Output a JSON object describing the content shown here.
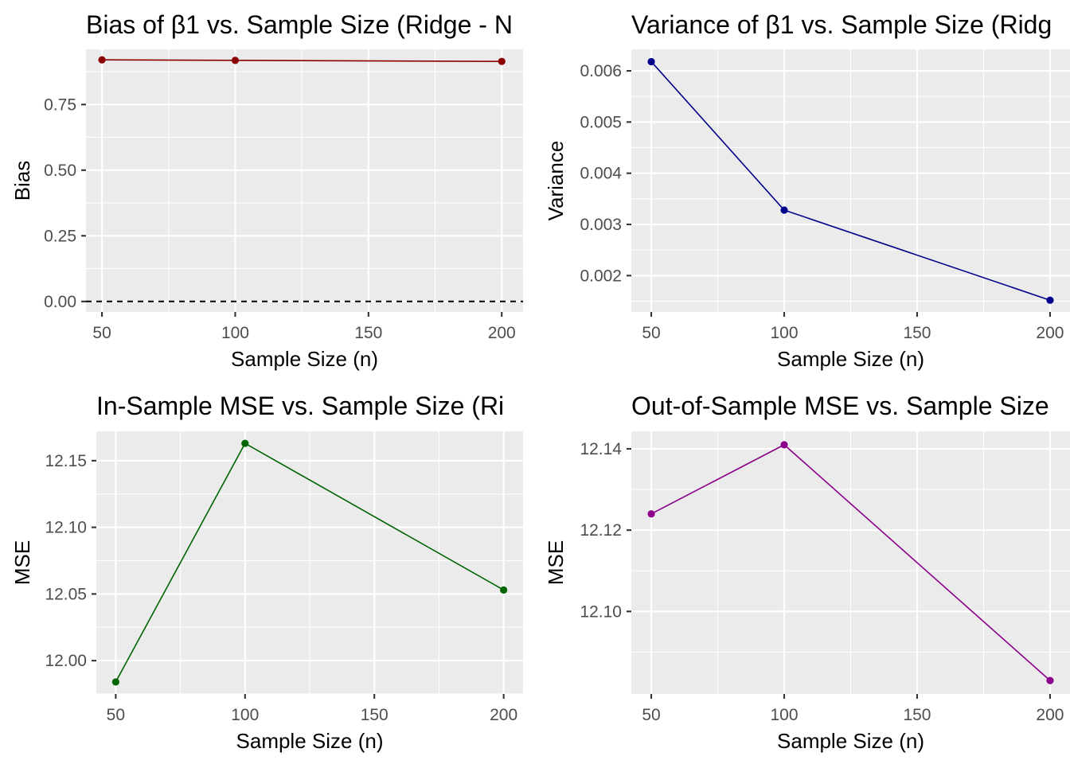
{
  "chart_data": [
    {
      "type": "line",
      "title": "Bias of β1 vs. Sample Size (Ridge - N",
      "xlabel": "Sample Size (n)",
      "ylabel": "Bias",
      "x": [
        50,
        100,
        200
      ],
      "series": [
        {
          "values": [
            0.92,
            0.918,
            0.914
          ],
          "color": "#8b0000"
        }
      ],
      "reference_line": {
        "y": 0,
        "style": "dashed",
        "color": "#000000"
      },
      "xlim": [
        44,
        208
      ],
      "ylim": [
        -0.04,
        0.96
      ],
      "xticks": [
        50,
        100,
        150,
        200
      ],
      "xtick_labels": [
        "50",
        "100",
        "150",
        "200"
      ],
      "yticks": [
        0,
        0.25,
        0.5,
        0.75
      ],
      "ytick_labels": [
        "0.00",
        "0.25",
        "0.50",
        "0.75"
      ],
      "grid": true
    },
    {
      "type": "line",
      "title": "Variance of β1 vs. Sample Size (Ridg",
      "xlabel": "Sample Size (n)",
      "ylabel": "Variance",
      "x": [
        50,
        100,
        200
      ],
      "series": [
        {
          "values": [
            0.00618,
            0.00328,
            0.00152
          ],
          "color": "#00008b"
        }
      ],
      "xlim": [
        42.5,
        207.5
      ],
      "ylim": [
        0.00129,
        0.00642
      ],
      "xticks": [
        50,
        100,
        150,
        200
      ],
      "xtick_labels": [
        "50",
        "100",
        "150",
        "200"
      ],
      "yticks": [
        0.002,
        0.003,
        0.004,
        0.005,
        0.006
      ],
      "ytick_labels": [
        "0.002",
        "0.003",
        "0.004",
        "0.005",
        "0.006"
      ],
      "grid": true
    },
    {
      "type": "line",
      "title": "In-Sample MSE vs. Sample Size (Ri",
      "xlabel": "Sample Size (n)",
      "ylabel": "MSE",
      "x": [
        50,
        100,
        200
      ],
      "series": [
        {
          "values": [
            11.984,
            12.163,
            12.053
          ],
          "color": "#006400"
        }
      ],
      "xlim": [
        42.5,
        207.5
      ],
      "ylim": [
        11.975,
        12.172
      ],
      "xticks": [
        50,
        100,
        150,
        200
      ],
      "xtick_labels": [
        "50",
        "100",
        "150",
        "200"
      ],
      "yticks": [
        12.0,
        12.05,
        12.1,
        12.15
      ],
      "ytick_labels": [
        "12.00",
        "12.05",
        "12.10",
        "12.15"
      ],
      "grid": true
    },
    {
      "type": "line",
      "title": "Out-of-Sample MSE vs. Sample Size",
      "xlabel": "Sample Size (n)",
      "ylabel": "MSE",
      "x": [
        50,
        100,
        200
      ],
      "series": [
        {
          "values": [
            12.124,
            12.141,
            12.083
          ],
          "color": "#8b008b"
        }
      ],
      "xlim": [
        42.5,
        207.5
      ],
      "ylim": [
        12.0797,
        12.1443
      ],
      "xticks": [
        50,
        100,
        150,
        200
      ],
      "xtick_labels": [
        "50",
        "100",
        "150",
        "200"
      ],
      "yticks": [
        12.1,
        12.12,
        12.14
      ],
      "ytick_labels": [
        "12.10",
        "12.12",
        "12.14"
      ],
      "grid": true
    }
  ]
}
